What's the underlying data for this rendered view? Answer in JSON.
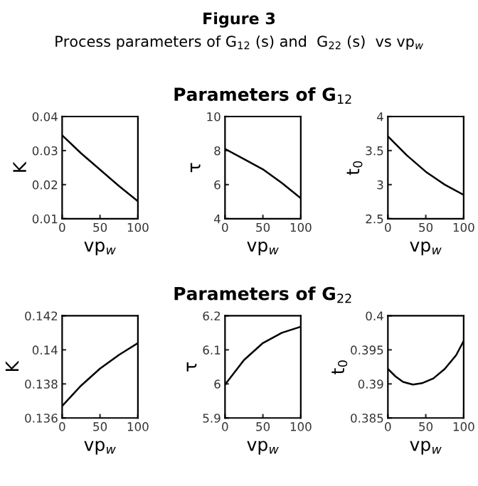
{
  "chart_data": [
    {
      "type": "other",
      "annotations": [
        "Figure 3",
        "Process parameters of G$_{12}$ (s) and  G$_{22}$ (s)  vs vp$_{w}$"
      ]
    },
    {
      "type": "line",
      "xlabel": "vp$_{w}$",
      "ylabel": "K",
      "x": [
        0,
        25,
        50,
        75,
        100
      ],
      "values": [
        0.0345,
        0.0292,
        0.0244,
        0.0196,
        0.0151
      ],
      "color": "#000000",
      "xlim": [
        0,
        100
      ],
      "xticks": [
        0,
        50,
        100
      ],
      "ylim": [
        0.01,
        0.04
      ],
      "yticks": [
        0.01,
        0.02,
        0.03,
        0.04
      ]
    },
    {
      "type": "line",
      "title": "Parameters of G$_{12}$",
      "xlabel": "vp$_{w}$",
      "ylabel": "τ",
      "x": [
        0,
        25,
        50,
        75,
        100
      ],
      "values": [
        8.1,
        7.5,
        6.9,
        6.1,
        5.2
      ],
      "color": "#000000",
      "xlim": [
        0,
        100
      ],
      "xticks": [
        0,
        50,
        100
      ],
      "ylim": [
        4,
        10
      ],
      "yticks": [
        4,
        6,
        8,
        10
      ]
    },
    {
      "type": "line",
      "xlabel": "vp$_{w}$",
      "ylabel": "t$_{0}$",
      "x": [
        0,
        25,
        50,
        75,
        100
      ],
      "values": [
        3.71,
        3.43,
        3.19,
        3.0,
        2.85
      ],
      "color": "#000000",
      "xlim": [
        0,
        100
      ],
      "xticks": [
        0,
        50,
        100
      ],
      "ylim": [
        2.5,
        4
      ],
      "yticks": [
        2.5,
        3,
        3.5,
        4
      ]
    },
    {
      "type": "line",
      "xlabel": "vp$_{w}$",
      "ylabel": "K",
      "x": [
        0,
        25,
        50,
        75,
        100
      ],
      "values": [
        0.1367,
        0.1379,
        0.1389,
        0.1397,
        0.1404
      ],
      "color": "#000000",
      "xlim": [
        0,
        100
      ],
      "xticks": [
        0,
        50,
        100
      ],
      "ylim": [
        0.136,
        0.142
      ],
      "yticks": [
        0.136,
        0.138,
        0.14,
        0.142
      ]
    },
    {
      "type": "line",
      "title": "Parameters of G$_{22}$",
      "xlabel": "vp$_{w}$",
      "ylabel": "τ",
      "x": [
        0,
        25,
        50,
        75,
        100
      ],
      "values": [
        5.998,
        6.07,
        6.12,
        6.15,
        6.168
      ],
      "color": "#000000",
      "xlim": [
        0,
        100
      ],
      "xticks": [
        0,
        50,
        100
      ],
      "ylim": [
        5.9,
        6.2
      ],
      "yticks": [
        5.9,
        6,
        6.1,
        6.2
      ]
    },
    {
      "type": "line",
      "xlabel": "vp$_{w}$",
      "ylabel": "t$_{0}$",
      "x": [
        0,
        10,
        20,
        33,
        45,
        60,
        75,
        90,
        100
      ],
      "values": [
        0.3922,
        0.3911,
        0.3903,
        0.3899,
        0.3901,
        0.3908,
        0.3922,
        0.3942,
        0.3963
      ],
      "color": "#000000",
      "xlim": [
        0,
        100
      ],
      "xticks": [
        0,
        50,
        100
      ],
      "ylim": [
        0.385,
        0.4
      ],
      "yticks": [
        0.385,
        0.39,
        0.395,
        0.4
      ]
    }
  ]
}
